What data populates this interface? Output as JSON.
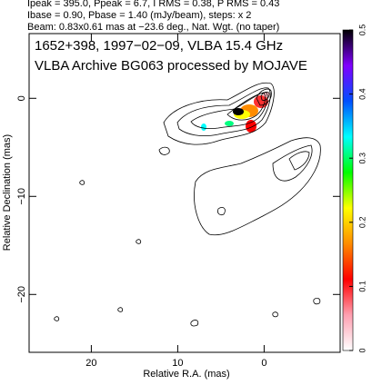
{
  "chart_data": {
    "type": "contour",
    "header": [
      "Ipeak = 395.0, Ppeak = 6.7, I RMS = 0.38, P RMS = 0.43",
      "Ibase = 0.90, Pbase = 1.40 (mJy/beam), steps: x 2",
      "Beam: 0.83x0.61 mas at −23.6 deg., Nat. Wgt. (no taper)"
    ],
    "title": "1652+398, 1997−02−09, VLBA 15.4 GHz",
    "subtitle": "VLBA Archive BG063 processed by MOJAVE",
    "xlabel": "Relative R.A. (mas)",
    "ylabel": "Relative Declination (mas)",
    "xlim": [
      27.2,
      -8.8
    ],
    "xticks": [
      20,
      10,
      0
    ],
    "ylim": [
      -25.9,
      6.6
    ],
    "yticks": [
      {
        "value": -20,
        "label": "−20"
      },
      {
        "value": -10,
        "label": "−10"
      },
      0
    ],
    "colorbar": {
      "lim": [
        0,
        0.5
      ],
      "ticks": [
        0,
        0.1,
        0.2,
        0.3,
        0.4,
        0.5
      ],
      "colors": [
        "#ffffff",
        "#ff9fb0",
        "#ff0000",
        "#ff8c00",
        "#ffff00",
        "#00ff00",
        "#00ffff",
        "#0050ff",
        "#8000ff",
        "#000000"
      ]
    },
    "contour_color": "#000000"
  }
}
